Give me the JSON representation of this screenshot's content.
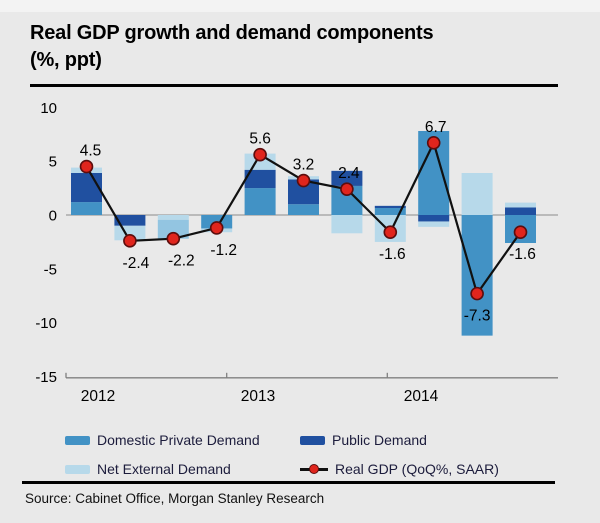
{
  "title": {
    "line1": "Real GDP growth and demand components",
    "line2": "(%, ppt)"
  },
  "source": "Source: Cabinet Office, Morgan Stanley Research",
  "palette": {
    "dpd": "#4292c5",
    "pd": "#2050a0",
    "ned": "#b7d9ea",
    "dpd_soft": "#93c5e1",
    "gdp_marker": "#e0251d",
    "gdp_marker_ring": "#5d0d0d",
    "gdp_line": "#111111",
    "background": "#e9e9e9",
    "zero_line": "#9f9f9f",
    "axis": "#808080",
    "text": "#000000",
    "legend_text": "#1c1c3c"
  },
  "legend": [
    {
      "key": "dpd",
      "label": "Domestic Private Demand",
      "type": "swatch"
    },
    {
      "key": "pd",
      "label": "Public Demand",
      "type": "swatch"
    },
    {
      "key": "ned",
      "label": "Net External Demand",
      "type": "swatch"
    },
    {
      "key": "gdp",
      "label": "Real GDP (QoQ%, SAAR)",
      "type": "line-marker"
    }
  ],
  "chart_data": {
    "type": "bar",
    "subtype": "stacked-bars-with-line-overlay",
    "title": "Real GDP growth and demand components (%, ppt)",
    "xlabel": "",
    "ylabel": "",
    "y_ticks": [
      10,
      5,
      0,
      -5,
      -10,
      -15
    ],
    "ylim": [
      -15,
      11.7
    ],
    "grid": false,
    "legend_position": "bottom",
    "years": [
      {
        "label": "2012",
        "quarters": 4
      },
      {
        "label": "2013",
        "quarters": 4
      },
      {
        "label": "2014",
        "quarters": 3
      }
    ],
    "series_names": {
      "dpd": "Domestic Private Demand",
      "pd": "Public Demand",
      "ned": "Net External Demand",
      "gdp": "Real GDP (QoQ%, SAAR)"
    },
    "quarters": [
      {
        "year": "2012",
        "quarter": "Q1",
        "gdp": 4.5,
        "gdp_label": "4.5",
        "label_pos": "above",
        "segments": [
          {
            "series": "dpd",
            "value": 1.2
          },
          {
            "series": "pd",
            "value": 2.7
          },
          {
            "series": "ned",
            "value": 0.5
          }
        ]
      },
      {
        "year": "2012",
        "quarter": "Q2",
        "gdp": -2.4,
        "gdp_label": "-2.4",
        "label_pos": "below",
        "segments": [
          {
            "series": "pd",
            "value": -1.0
          },
          {
            "series": "ned",
            "value": -1.35
          }
        ]
      },
      {
        "year": "2012",
        "quarter": "Q3",
        "gdp": -2.2,
        "gdp_label": "-2.2",
        "label_pos": "below",
        "segments": [
          {
            "series": "ned",
            "value": -0.45
          },
          {
            "series": "dpd",
            "value": -1.75,
            "tone": "soft"
          }
        ]
      },
      {
        "year": "2012",
        "quarter": "Q4",
        "gdp": -1.2,
        "gdp_label": "-1.2",
        "label_pos": "below",
        "segments": [
          {
            "series": "dpd",
            "value": -1.25
          },
          {
            "series": "ned",
            "value": -0.35
          }
        ]
      },
      {
        "year": "2013",
        "quarter": "Q1",
        "gdp": 5.6,
        "gdp_label": "5.6",
        "label_pos": "above",
        "segments": [
          {
            "series": "dpd",
            "value": 2.5
          },
          {
            "series": "pd",
            "value": 1.7
          },
          {
            "series": "ned",
            "value": 1.5
          }
        ]
      },
      {
        "year": "2013",
        "quarter": "Q2",
        "gdp": 3.2,
        "gdp_label": "3.2",
        "label_pos": "above",
        "segments": [
          {
            "series": "dpd",
            "value": 1.0
          },
          {
            "series": "pd",
            "value": 2.3
          },
          {
            "series": "ned",
            "value": 0.3
          }
        ]
      },
      {
        "year": "2013",
        "quarter": "Q3",
        "gdp": 2.4,
        "gdp_label": "2.4",
        "label_pos": "above",
        "segments": [
          {
            "series": "dpd",
            "value": 2.7
          },
          {
            "series": "pd",
            "value": 1.4
          },
          {
            "series": "ned",
            "value": -1.7
          }
        ]
      },
      {
        "year": "2013",
        "quarter": "Q4",
        "gdp": -1.6,
        "gdp_label": "-1.6",
        "label_pos": "below",
        "segments": [
          {
            "series": "dpd",
            "value": 0.65
          },
          {
            "series": "pd",
            "value": 0.2
          },
          {
            "series": "ned",
            "value": -2.5
          }
        ]
      },
      {
        "year": "2014",
        "quarter": "Q1",
        "gdp": 6.7,
        "gdp_label": "6.7",
        "label_pos": "above",
        "segments": [
          {
            "series": "dpd",
            "value": 7.8
          },
          {
            "series": "pd",
            "value": -0.6
          },
          {
            "series": "ned",
            "value": -0.5
          }
        ]
      },
      {
        "year": "2014",
        "quarter": "Q2",
        "gdp": -7.3,
        "gdp_label": "-7.3",
        "label_pos": "below",
        "segments": [
          {
            "series": "ned",
            "value": 3.9
          },
          {
            "series": "dpd",
            "value": -11.2
          }
        ]
      },
      {
        "year": "2014",
        "quarter": "Q3",
        "gdp": -1.6,
        "gdp_label": "-1.6",
        "label_pos": "below",
        "segments": [
          {
            "series": "pd",
            "value": 0.7
          },
          {
            "series": "ned",
            "value": 0.45
          },
          {
            "series": "dpd",
            "value": -2.6
          }
        ]
      }
    ]
  }
}
